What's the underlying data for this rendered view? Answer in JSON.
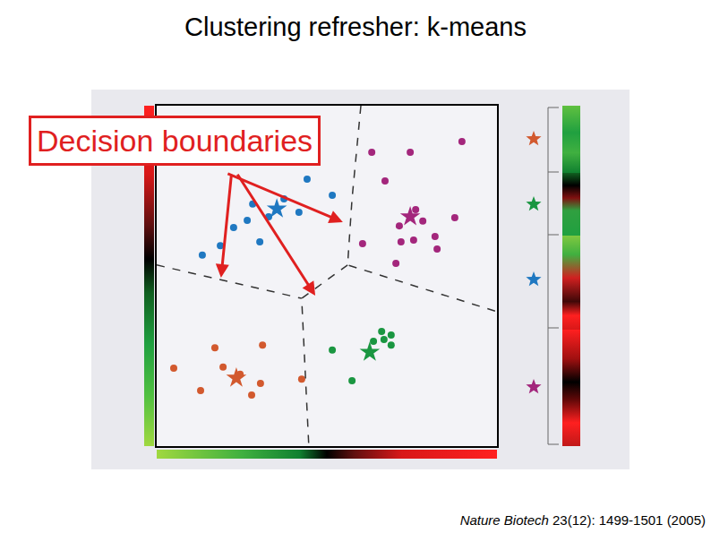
{
  "chart_data": {
    "type": "scatter",
    "title": "Clustering refresher: k-means",
    "xlim": [
      0,
      100
    ],
    "ylim": [
      0,
      100
    ],
    "tick_labels": false,
    "grid": false,
    "series": [
      {
        "color": "#d2592e",
        "marker": "circle",
        "x": [
          17.1,
          31.1,
          5.0,
          19.5,
          24.5,
          30.5,
          12.9,
          27.9,
          42.6
        ],
        "y": [
          28.9,
          29.7,
          22.9,
          23.2,
          21.1,
          18.4,
          16.3,
          15.0,
          19.7
        ]
      },
      {
        "color": "#1a9641",
        "marker": "circle",
        "x": [
          66.1,
          68.9,
          63.7,
          66.8,
          68.9,
          51.6,
          57.4
        ],
        "y": [
          33.7,
          32.6,
          30.8,
          31.3,
          29.7,
          28.2,
          19.2
        ]
      },
      {
        "color": "#1f78c1",
        "marker": "circle",
        "x": [
          44.2,
          51.6,
          37.4,
          28.2,
          32.9,
          41.8,
          26.6,
          22.6,
          18.7,
          30.3,
          13.4
        ],
        "y": [
          78.4,
          73.7,
          72.6,
          71.1,
          67.4,
          68.7,
          66.3,
          64.2,
          58.9,
          60.0,
          56.1
        ]
      },
      {
        "color": "#a3267c",
        "marker": "circle",
        "x": [
          63.2,
          74.5,
          89.7,
          67.1,
          76.1,
          78.2,
          71.3,
          87.6,
          60.5,
          71.8,
          75.5,
          81.8,
          82.4,
          70.3
        ],
        "y": [
          86.3,
          86.3,
          89.5,
          77.9,
          69.5,
          66.1,
          64.7,
          67.1,
          59.5,
          60.0,
          60.5,
          61.6,
          57.9,
          53.7
        ]
      },
      {
        "type": "line",
        "line_style": "dash",
        "color": "#333333",
        "x": [
          60.0,
          57.4,
          56.1,
          100,
          null,
          56.1,
          42.6,
          44.7,
          null,
          0,
          42.6
        ],
        "y": [
          100,
          72.6,
          53.2,
          39.5,
          null,
          53.2,
          43.4,
          0,
          null,
          53.2,
          43.4
        ]
      },
      {
        "marker": "star",
        "colors": [
          "#d2592e",
          "#1a9641",
          "#1f78c1",
          "#a3267c"
        ],
        "x": [
          23.4,
          62.6,
          35.3,
          74.5
        ],
        "y": [
          20.0,
          27.6,
          69.7,
          67.4
        ]
      }
    ],
    "annotations": [
      {
        "text": "Decision boundaries",
        "color": "#e02020",
        "arrows": [
          {
            "x": 54.7,
            "y": 65.8
          },
          {
            "x": 18.9,
            "y": 49.5
          },
          {
            "x": 46.6,
            "y": 44.2
          }
        ]
      }
    ],
    "source": {
      "journal": "Nature Biotech",
      "reference": "23(12): 1499-1501 (2005)"
    }
  }
}
